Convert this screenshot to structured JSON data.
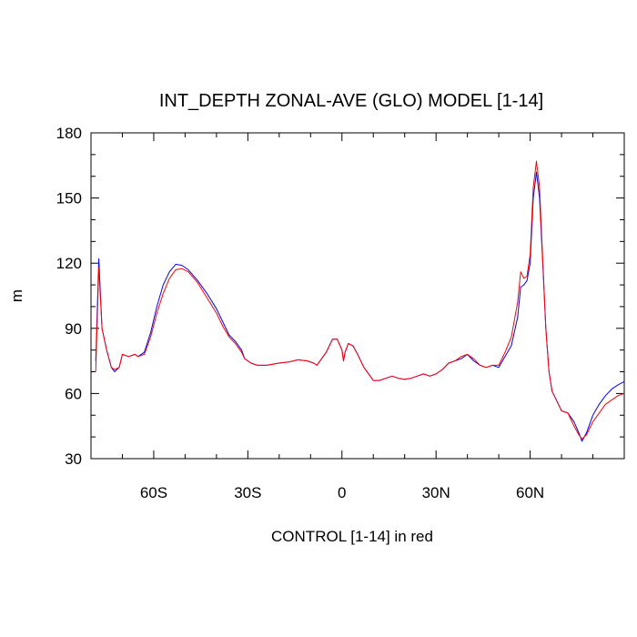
{
  "chart_data": {
    "type": "line",
    "title": "INT_DEPTH ZONAL-AVE (GLO) MODEL [1-14]",
    "xlabel": "CONTROL [1-14] in red",
    "ylabel": "m",
    "xlim": [
      -80,
      90
    ],
    "ylim": [
      30,
      180
    ],
    "grid": false,
    "x_ticks": [
      {
        "value": -60,
        "label": "60S"
      },
      {
        "value": -30,
        "label": "30S"
      },
      {
        "value": 0,
        "label": "0"
      },
      {
        "value": 30,
        "label": "30N"
      },
      {
        "value": 60,
        "label": "60N"
      }
    ],
    "y_ticks": [
      {
        "value": 30,
        "label": "30"
      },
      {
        "value": 60,
        "label": "60"
      },
      {
        "value": 90,
        "label": "90"
      },
      {
        "value": 120,
        "label": "120"
      },
      {
        "value": 150,
        "label": "150"
      },
      {
        "value": 180,
        "label": "180"
      }
    ],
    "series": [
      {
        "color": "#0000ff",
        "points": [
          [
            -78.5,
            75
          ],
          [
            -77.5,
            122
          ],
          [
            -76.5,
            90
          ],
          [
            -75,
            80
          ],
          [
            -73.5,
            72
          ],
          [
            -72.5,
            70
          ],
          [
            -71,
            72
          ],
          [
            -70,
            78
          ],
          [
            -68,
            77
          ],
          [
            -66,
            78
          ],
          [
            -65,
            77
          ],
          [
            -63,
            79
          ],
          [
            -61,
            88
          ],
          [
            -59,
            100
          ],
          [
            -57,
            110
          ],
          [
            -55,
            116
          ],
          [
            -53,
            119.5
          ],
          [
            -51,
            119
          ],
          [
            -49,
            117
          ],
          [
            -46,
            112
          ],
          [
            -43,
            106
          ],
          [
            -40,
            99
          ],
          [
            -38,
            93
          ],
          [
            -36,
            87
          ],
          [
            -34,
            84
          ],
          [
            -32,
            80
          ],
          [
            -31,
            76
          ],
          [
            -29,
            74
          ],
          [
            -27,
            73
          ],
          [
            -24,
            73
          ],
          [
            -20,
            74
          ],
          [
            -17,
            74.5
          ],
          [
            -14,
            75.5
          ],
          [
            -11,
            75
          ],
          [
            -9,
            74
          ],
          [
            -8,
            73
          ],
          [
            -5,
            79
          ],
          [
            -3,
            85
          ],
          [
            -1.5,
            85
          ],
          [
            0,
            80
          ],
          [
            0.5,
            75
          ],
          [
            1,
            79
          ],
          [
            2,
            83
          ],
          [
            3.5,
            82
          ],
          [
            5,
            78
          ],
          [
            7,
            72
          ],
          [
            9,
            68
          ],
          [
            10,
            66
          ],
          [
            12,
            66
          ],
          [
            14,
            67
          ],
          [
            16,
            68
          ],
          [
            18,
            67
          ],
          [
            20,
            66.5
          ],
          [
            22,
            67
          ],
          [
            24,
            68
          ],
          [
            26,
            69
          ],
          [
            28,
            68
          ],
          [
            30,
            69
          ],
          [
            32,
            71
          ],
          [
            34,
            74
          ],
          [
            36,
            75
          ],
          [
            38,
            76
          ],
          [
            40,
            78
          ],
          [
            42,
            75
          ],
          [
            44,
            73
          ],
          [
            46,
            72
          ],
          [
            48,
            73
          ],
          [
            50,
            72
          ],
          [
            52,
            77
          ],
          [
            54,
            82
          ],
          [
            56,
            95
          ],
          [
            57,
            109
          ],
          [
            58,
            110
          ],
          [
            59,
            112
          ],
          [
            60,
            120
          ],
          [
            61,
            150
          ],
          [
            62,
            162
          ],
          [
            63,
            150
          ],
          [
            64,
            120
          ],
          [
            65,
            90
          ],
          [
            66,
            70
          ],
          [
            67,
            61
          ],
          [
            68,
            58
          ],
          [
            70,
            52
          ],
          [
            72,
            51
          ],
          [
            74,
            47
          ],
          [
            75.5,
            42
          ],
          [
            76.5,
            38
          ],
          [
            78,
            42
          ],
          [
            80,
            50
          ],
          [
            82,
            55
          ],
          [
            84,
            59
          ],
          [
            86,
            62
          ],
          [
            88,
            64
          ],
          [
            90,
            65.5
          ]
        ]
      },
      {
        "color": "#ff0000",
        "points": [
          [
            -78.5,
            70
          ],
          [
            -77.5,
            118
          ],
          [
            -76.5,
            90
          ],
          [
            -75,
            80
          ],
          [
            -73.5,
            72
          ],
          [
            -72.5,
            71
          ],
          [
            -71,
            72
          ],
          [
            -70,
            78
          ],
          [
            -68,
            77
          ],
          [
            -66,
            78
          ],
          [
            -65,
            77
          ],
          [
            -63,
            78
          ],
          [
            -61,
            86
          ],
          [
            -59,
            97
          ],
          [
            -57,
            106
          ],
          [
            -55,
            113
          ],
          [
            -53,
            117
          ],
          [
            -51,
            117.5
          ],
          [
            -49,
            116
          ],
          [
            -46,
            111
          ],
          [
            -43,
            104
          ],
          [
            -40,
            97
          ],
          [
            -38,
            91
          ],
          [
            -36,
            86
          ],
          [
            -34,
            83
          ],
          [
            -32,
            79
          ],
          [
            -31,
            76
          ],
          [
            -29,
            74
          ],
          [
            -27,
            73
          ],
          [
            -24,
            73
          ],
          [
            -20,
            74
          ],
          [
            -17,
            74.5
          ],
          [
            -14,
            75.5
          ],
          [
            -11,
            75
          ],
          [
            -9,
            74
          ],
          [
            -8,
            73
          ],
          [
            -5,
            79
          ],
          [
            -3,
            85
          ],
          [
            -1.5,
            85
          ],
          [
            0,
            80
          ],
          [
            0.5,
            75
          ],
          [
            1,
            79
          ],
          [
            2,
            83
          ],
          [
            3.5,
            82
          ],
          [
            5,
            78
          ],
          [
            7,
            72
          ],
          [
            9,
            68
          ],
          [
            10,
            66
          ],
          [
            12,
            66
          ],
          [
            14,
            67
          ],
          [
            16,
            68
          ],
          [
            18,
            67
          ],
          [
            20,
            66.5
          ],
          [
            22,
            67
          ],
          [
            24,
            68
          ],
          [
            26,
            69
          ],
          [
            28,
            68
          ],
          [
            30,
            69
          ],
          [
            32,
            71
          ],
          [
            34,
            74
          ],
          [
            36,
            75
          ],
          [
            38,
            77
          ],
          [
            40,
            78
          ],
          [
            42,
            76
          ],
          [
            44,
            73
          ],
          [
            46,
            72
          ],
          [
            48,
            73
          ],
          [
            50,
            73
          ],
          [
            52,
            79
          ],
          [
            54,
            86
          ],
          [
            56,
            102
          ],
          [
            57,
            116
          ],
          [
            58,
            113
          ],
          [
            59,
            114
          ],
          [
            60,
            124
          ],
          [
            61,
            155
          ],
          [
            62,
            167
          ],
          [
            63,
            155
          ],
          [
            64,
            122
          ],
          [
            65,
            90
          ],
          [
            66,
            70
          ],
          [
            67,
            61
          ],
          [
            68,
            58
          ],
          [
            70,
            52
          ],
          [
            72,
            51
          ],
          [
            74,
            45
          ],
          [
            75.5,
            41
          ],
          [
            76.5,
            39
          ],
          [
            78,
            41
          ],
          [
            80,
            47
          ],
          [
            82,
            51
          ],
          [
            84,
            55
          ],
          [
            86,
            57
          ],
          [
            88,
            59
          ],
          [
            90,
            60
          ]
        ]
      }
    ]
  }
}
